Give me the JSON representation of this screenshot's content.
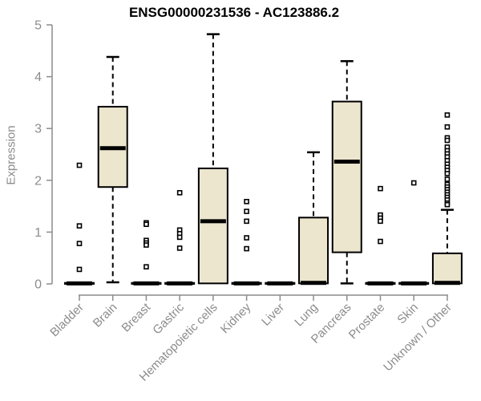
{
  "chart_data": {
    "type": "boxplot",
    "title": "ENSG00000231536 - AC123886.2",
    "ylabel": "Expression",
    "xlabel": "",
    "ylim": [
      0,
      5
    ],
    "y_ticks": [
      0,
      1,
      2,
      3,
      4,
      5
    ],
    "grid": false,
    "legend": "none",
    "colors": {
      "box_fill": "#ece6cf",
      "box_stroke": "#000000",
      "axis": "#8c8c8c",
      "title": "#000000"
    },
    "categories": [
      "Bladder",
      "Brain",
      "Breast",
      "Gastric",
      "Hematopoietic cells",
      "Kidney",
      "Liver",
      "Lung",
      "Pancreas",
      "Prostate",
      "Skin",
      "Unknown / Other"
    ],
    "series": [
      {
        "category": "Bladder",
        "min": 0,
        "q1": 0,
        "median": 0.01,
        "q3": 0.02,
        "max": 0.02,
        "outliers": [
          2.29,
          1.12,
          0.78,
          0.28
        ]
      },
      {
        "category": "Brain",
        "min": 0.03,
        "q1": 1.87,
        "median": 2.62,
        "q3": 3.42,
        "max": 4.38,
        "outliers": []
      },
      {
        "category": "Breast",
        "min": 0,
        "q1": 0,
        "median": 0.01,
        "q3": 0.02,
        "max": 0.02,
        "outliers": [
          1.18,
          1.15,
          0.84,
          0.79,
          0.75,
          0.33
        ]
      },
      {
        "category": "Gastric",
        "min": 0,
        "q1": 0,
        "median": 0.01,
        "q3": 0.02,
        "max": 0.02,
        "outliers": [
          1.76,
          1.04,
          0.97,
          0.9,
          0.69
        ]
      },
      {
        "category": "Hematopoietic cells",
        "min": 0,
        "q1": 0.01,
        "median": 1.21,
        "q3": 2.23,
        "max": 4.82,
        "outliers": []
      },
      {
        "category": "Kidney",
        "min": 0,
        "q1": 0,
        "median": 0.01,
        "q3": 0.02,
        "max": 0.02,
        "outliers": [
          1.59,
          1.4,
          1.21,
          0.89,
          0.68
        ]
      },
      {
        "category": "Liver",
        "min": 0,
        "q1": 0,
        "median": 0.01,
        "q3": 0.02,
        "max": 0.02,
        "outliers": []
      },
      {
        "category": "Lung",
        "min": 0,
        "q1": 0.01,
        "median": 0.02,
        "q3": 1.28,
        "max": 2.54,
        "outliers": []
      },
      {
        "category": "Pancreas",
        "min": 0.01,
        "q1": 0.61,
        "median": 2.36,
        "q3": 3.52,
        "max": 4.3,
        "outliers": []
      },
      {
        "category": "Prostate",
        "min": 0,
        "q1": 0,
        "median": 0.01,
        "q3": 0.02,
        "max": 0.02,
        "outliers": [
          1.84,
          1.33,
          1.27,
          1.21,
          0.82
        ]
      },
      {
        "category": "Skin",
        "min": 0,
        "q1": 0,
        "median": 0.01,
        "q3": 0.02,
        "max": 0.02,
        "outliers": [
          1.95
        ]
      },
      {
        "category": "Unknown / Other",
        "min": 0,
        "q1": 0.01,
        "median": 0.02,
        "q3": 0.59,
        "max": 1.43,
        "outliers": [
          3.26,
          3.03,
          2.82,
          2.77,
          2.64,
          2.57,
          2.51,
          2.45,
          2.38,
          2.31,
          2.25,
          2.19,
          2.13,
          2.02,
          1.92,
          1.87,
          1.82,
          1.77,
          1.72,
          1.67,
          1.62,
          1.56,
          1.53
        ]
      }
    ]
  }
}
